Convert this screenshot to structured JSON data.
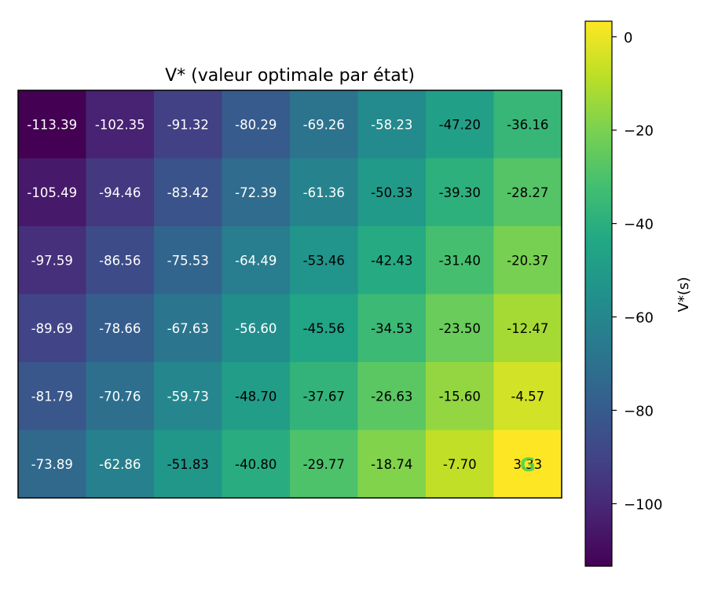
{
  "chart_data": {
    "type": "heatmap",
    "title": "V* (valeur optimale par état)",
    "rows": 6,
    "cols": 8,
    "values": [
      [
        -113.39,
        -102.35,
        -91.32,
        -80.29,
        -69.26,
        -58.23,
        -47.2,
        -36.16
      ],
      [
        -105.49,
        -94.46,
        -83.42,
        -72.39,
        -61.36,
        -50.33,
        -39.3,
        -28.27
      ],
      [
        -97.59,
        -86.56,
        -75.53,
        -64.49,
        -53.46,
        -42.43,
        -31.4,
        -20.37
      ],
      [
        -89.69,
        -78.66,
        -67.63,
        -56.6,
        -45.56,
        -34.53,
        -23.5,
        -12.47
      ],
      [
        -81.79,
        -70.76,
        -59.73,
        -48.7,
        -37.67,
        -26.63,
        -15.6,
        -4.57
      ],
      [
        -73.89,
        -62.86,
        -51.83,
        -40.8,
        -29.77,
        -18.74,
        -7.7,
        3.33
      ]
    ],
    "value_format": "2 decimals",
    "colormap": "viridis",
    "vmin": -113.39,
    "vmax": 3.33,
    "goal_marker": {
      "label": "G",
      "row": 5,
      "col": 7,
      "color": "#4fd34f"
    },
    "colorbar": {
      "label": "V*(s)",
      "ticks": [
        0,
        -20,
        -40,
        -60,
        -80,
        -100
      ],
      "tick_labels": [
        "0",
        "−20",
        "−40",
        "−60",
        "−80",
        "−100"
      ]
    },
    "text_color_threshold": -55,
    "text_colors": {
      "dark_cell": "#ffffff",
      "light_cell": "#000000"
    }
  }
}
